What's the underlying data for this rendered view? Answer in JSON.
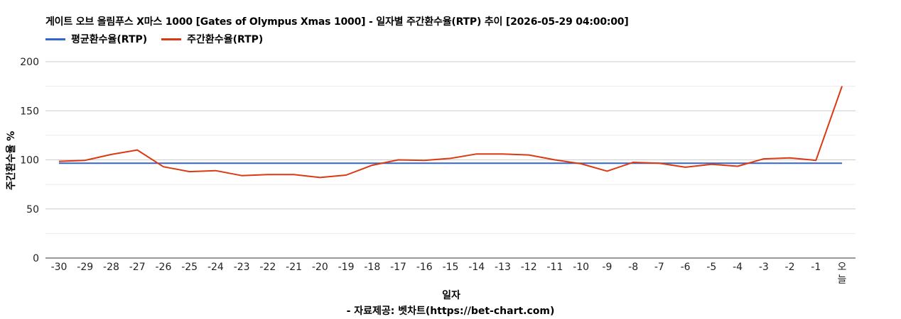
{
  "chart_data": {
    "type": "line",
    "title": "게이트 오브 올림푸스 X마스 1000 [Gates of Olympus Xmas 1000] - 일자별 주간환수율(RTP) 추이 [2026-05-29 04:00:00]",
    "xlabel": "일자",
    "ylabel": "주간환수율 %",
    "ylim": [
      0,
      200
    ],
    "yticks": [
      0,
      50,
      100,
      150,
      200
    ],
    "grid": true,
    "legend_position": "top-left",
    "categories": [
      "-30",
      "-29",
      "-28",
      "-27",
      "-26",
      "-25",
      "-24",
      "-23",
      "-22",
      "-21",
      "-20",
      "-19",
      "-18",
      "-17",
      "-16",
      "-15",
      "-14",
      "-13",
      "-12",
      "-11",
      "-10",
      "-9",
      "-8",
      "-7",
      "-6",
      "-5",
      "-4",
      "-3",
      "-2",
      "-1",
      "오늘"
    ],
    "series": [
      {
        "name": "평균환수율(RTP)",
        "color": "#3366cc",
        "values": [
          96.5,
          96.5,
          96.5,
          96.5,
          96.5,
          96.5,
          96.5,
          96.5,
          96.5,
          96.5,
          96.5,
          96.5,
          96.5,
          96.5,
          96.5,
          96.5,
          96.5,
          96.5,
          96.5,
          96.5,
          96.5,
          96.5,
          96.5,
          96.5,
          96.5,
          96.5,
          96.5,
          96.5,
          96.5,
          96.5,
          96.5
        ]
      },
      {
        "name": "주간환수율(RTP)",
        "color": "#dc3912",
        "values": [
          98.5,
          99.5,
          105.5,
          110,
          93,
          88,
          89,
          84,
          85,
          85,
          82,
          84.5,
          94.5,
          100,
          99.5,
          101.5,
          106,
          106,
          105,
          100,
          96,
          88.5,
          97.5,
          96.5,
          92.5,
          95.5,
          93.5,
          101,
          102,
          99.5,
          175
        ]
      }
    ]
  },
  "source_note": "- 자료제공: 벳차트(https://bet-chart.com)"
}
